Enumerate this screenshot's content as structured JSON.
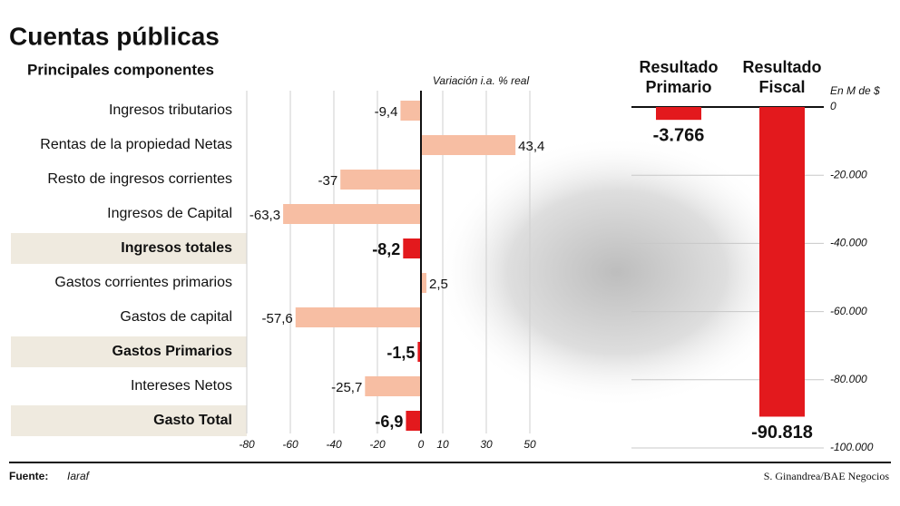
{
  "title": "Cuentas públicas",
  "subtitle": "Principales componentes",
  "source_label": "Fuente:",
  "source": "Iaraf",
  "credit": "S. Ginandrea/BAE Negocios",
  "chart_data": [
    {
      "type": "bar",
      "orientation": "horizontal",
      "axis_label": "Variación i.a. % real",
      "categories": [
        "Ingresos tributarios",
        "Rentas de la propiedad Netas",
        "Resto de ingresos corrientes",
        "Ingresos de Capital",
        "Ingresos totales",
        "Gastos corrientes primarios",
        "Gastos de capital",
        "Gastos Primarios",
        "Intereses Netos",
        "Gasto Total"
      ],
      "values": [
        -9.4,
        43.4,
        -37,
        -63.3,
        -8.2,
        2.5,
        -57.6,
        -1.5,
        -25.7,
        -6.9
      ],
      "value_labels": [
        "-9,4",
        "43,4",
        "-37",
        "-63,3",
        "-8,2",
        "2,5",
        "-57,6",
        "-1,5",
        "-25,7",
        "-6,9"
      ],
      "highlight": [
        false,
        false,
        false,
        false,
        true,
        false,
        false,
        true,
        false,
        true
      ],
      "color": "#f7bea3",
      "highlight_color": "#e3191d",
      "xlim": [
        -80,
        50
      ],
      "xticks": [
        -80,
        -60,
        -40,
        -20,
        0,
        10,
        30,
        50
      ],
      "grid": true
    },
    {
      "type": "bar",
      "orientation": "vertical",
      "axis_label": "En M de $",
      "categories": [
        "Resultado Primario",
        "Resultado Fiscal"
      ],
      "values": [
        -3766,
        -90818
      ],
      "value_labels": [
        "-3.766",
        "-90.818"
      ],
      "color": "#e3191d",
      "ylim": [
        -100000,
        0
      ],
      "yticks": [
        0,
        {
          "value": -20000,
          "label": "-20.000"
        },
        {
          "value": -40000,
          "label": "-40.000"
        },
        {
          "value": -60000,
          "label": "-60.000"
        },
        {
          "value": -80000,
          "label": "-80.000"
        },
        {
          "value": -100000,
          "label": "-100.000"
        }
      ],
      "grid": true
    }
  ]
}
